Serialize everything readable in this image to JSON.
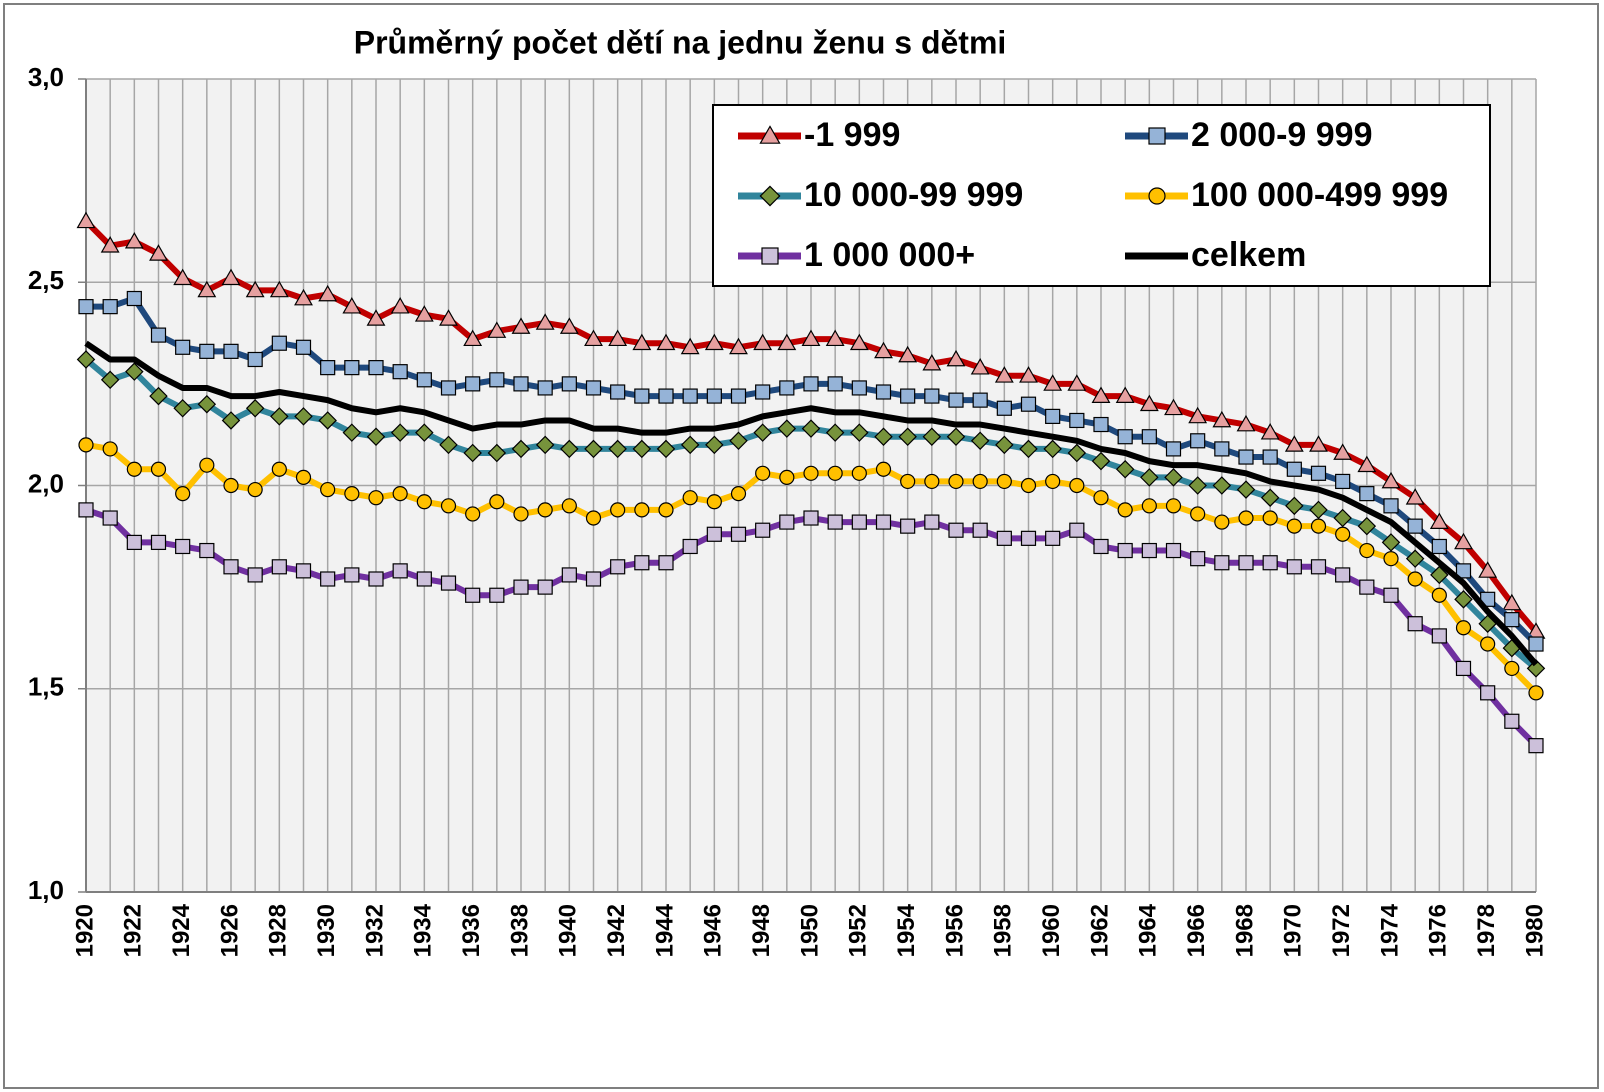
{
  "chart_data": {
    "type": "line",
    "title": "Průměrný počet dětí na jednu ženu s dětmi",
    "categories": [
      1920,
      null,
      1922,
      null,
      1924,
      null,
      1926,
      null,
      1928,
      null,
      1930,
      null,
      1932,
      null,
      1934,
      null,
      1936,
      null,
      1938,
      null,
      1940,
      null,
      1942,
      null,
      1944,
      null,
      1946,
      null,
      1948,
      null,
      1950,
      null,
      1952,
      null,
      1954,
      null,
      1956,
      null,
      1958,
      null,
      1960,
      null,
      1962,
      null,
      1964,
      null,
      1966,
      null,
      1968,
      null,
      1970,
      null,
      1972,
      null,
      1974,
      null,
      1976,
      null,
      1978,
      null,
      1980
    ],
    "ylim": [
      1,
      3
    ],
    "yticks": [
      {
        "value": 1,
        "label": "1,0"
      },
      {
        "value": 1.5,
        "label": "1,5"
      },
      {
        "value": 2,
        "label": "2,0"
      },
      {
        "value": 2.5,
        "label": "2,5"
      },
      {
        "value": 3,
        "label": "3,0"
      }
    ],
    "grid": true,
    "legend": "top-right",
    "series": [
      {
        "name": "-1 999",
        "color": "#c00000",
        "marker": "triangle",
        "marker_color": "#e6a0a0",
        "values": [
          2.65,
          2.59,
          2.6,
          2.57,
          2.51,
          2.48,
          2.51,
          2.48,
          2.48,
          2.46,
          2.47,
          2.44,
          2.41,
          2.44,
          2.42,
          2.41,
          2.36,
          2.38,
          2.39,
          2.4,
          2.39,
          2.36,
          2.36,
          2.35,
          2.35,
          2.34,
          2.35,
          2.34,
          2.35,
          2.35,
          2.36,
          2.36,
          2.35,
          2.33,
          2.32,
          2.3,
          2.31,
          2.29,
          2.27,
          2.27,
          2.25,
          2.25,
          2.22,
          2.22,
          2.2,
          2.19,
          2.17,
          2.16,
          2.15,
          2.13,
          2.1,
          2.1,
          2.08,
          2.05,
          2.01,
          1.97,
          1.91,
          1.86,
          1.79,
          1.71,
          1.64
        ]
      },
      {
        "name": "2 000-9 999",
        "color": "#1f497d",
        "marker": "square",
        "marker_color": "#95b3d7",
        "values": [
          2.44,
          2.44,
          2.46,
          2.37,
          2.34,
          2.33,
          2.33,
          2.31,
          2.35,
          2.34,
          2.29,
          2.29,
          2.29,
          2.28,
          2.26,
          2.24,
          2.25,
          2.26,
          2.25,
          2.24,
          2.25,
          2.24,
          2.23,
          2.22,
          2.22,
          2.22,
          2.22,
          2.22,
          2.23,
          2.24,
          2.25,
          2.25,
          2.24,
          2.23,
          2.22,
          2.22,
          2.21,
          2.21,
          2.19,
          2.2,
          2.17,
          2.16,
          2.15,
          2.12,
          2.12,
          2.09,
          2.11,
          2.09,
          2.07,
          2.07,
          2.04,
          2.03,
          2.01,
          1.98,
          1.95,
          1.9,
          1.85,
          1.79,
          1.72,
          1.67,
          1.61
        ]
      },
      {
        "name": "10 000-99 999",
        "color": "#31859c",
        "marker": "diamond",
        "marker_color": "#77933c",
        "values": [
          2.31,
          2.26,
          2.28,
          2.22,
          2.19,
          2.2,
          2.16,
          2.19,
          2.17,
          2.17,
          2.16,
          2.13,
          2.12,
          2.13,
          2.13,
          2.1,
          2.08,
          2.08,
          2.09,
          2.1,
          2.09,
          2.09,
          2.09,
          2.09,
          2.09,
          2.1,
          2.1,
          2.11,
          2.13,
          2.14,
          2.14,
          2.13,
          2.13,
          2.12,
          2.12,
          2.12,
          2.12,
          2.11,
          2.1,
          2.09,
          2.09,
          2.08,
          2.06,
          2.04,
          2.02,
          2.02,
          2.0,
          2.0,
          1.99,
          1.97,
          1.95,
          1.94,
          1.92,
          1.9,
          1.86,
          1.82,
          1.78,
          1.72,
          1.66,
          1.6,
          1.55
        ]
      },
      {
        "name": "100 000-499 999",
        "color": "#ffc000",
        "marker": "circle",
        "marker_color": "#ffc000",
        "values": [
          2.1,
          2.09,
          2.04,
          2.04,
          1.98,
          2.05,
          2.0,
          1.99,
          2.04,
          2.02,
          1.99,
          1.98,
          1.97,
          1.98,
          1.96,
          1.95,
          1.93,
          1.96,
          1.93,
          1.94,
          1.95,
          1.92,
          1.94,
          1.94,
          1.94,
          1.97,
          1.96,
          1.98,
          2.03,
          2.02,
          2.03,
          2.03,
          2.03,
          2.04,
          2.01,
          2.01,
          2.01,
          2.01,
          2.01,
          2.0,
          2.01,
          2.0,
          1.97,
          1.94,
          1.95,
          1.95,
          1.93,
          1.91,
          1.92,
          1.92,
          1.9,
          1.9,
          1.88,
          1.84,
          1.82,
          1.77,
          1.73,
          1.65,
          1.61,
          1.55,
          1.49
        ]
      },
      {
        "name": "1 000 000+",
        "color": "#7030a0",
        "marker": "square",
        "marker_color": "#ccc0da",
        "values": [
          1.94,
          1.92,
          1.86,
          1.86,
          1.85,
          1.84,
          1.8,
          1.78,
          1.8,
          1.79,
          1.77,
          1.78,
          1.77,
          1.79,
          1.77,
          1.76,
          1.73,
          1.73,
          1.75,
          1.75,
          1.78,
          1.77,
          1.8,
          1.81,
          1.81,
          1.85,
          1.88,
          1.88,
          1.89,
          1.91,
          1.92,
          1.91,
          1.91,
          1.91,
          1.9,
          1.91,
          1.89,
          1.89,
          1.87,
          1.87,
          1.87,
          1.89,
          1.85,
          1.84,
          1.84,
          1.84,
          1.82,
          1.81,
          1.81,
          1.81,
          1.8,
          1.8,
          1.78,
          1.75,
          1.73,
          1.66,
          1.63,
          1.55,
          1.49,
          1.42,
          1.36
        ]
      },
      {
        "name": "celkem",
        "color": "#000000",
        "values": [
          2.35,
          2.31,
          2.31,
          2.27,
          2.24,
          2.24,
          2.22,
          2.22,
          2.23,
          2.22,
          2.21,
          2.19,
          2.18,
          2.19,
          2.18,
          2.16,
          2.14,
          2.15,
          2.15,
          2.16,
          2.16,
          2.14,
          2.14,
          2.13,
          2.13,
          2.14,
          2.14,
          2.15,
          2.17,
          2.18,
          2.19,
          2.18,
          2.18,
          2.17,
          2.16,
          2.16,
          2.15,
          2.15,
          2.14,
          2.13,
          2.12,
          2.11,
          2.09,
          2.08,
          2.06,
          2.05,
          2.05,
          2.04,
          2.03,
          2.01,
          2.0,
          1.99,
          1.97,
          1.94,
          1.91,
          1.86,
          1.81,
          1.76,
          1.69,
          1.63,
          1.56
        ]
      }
    ]
  }
}
